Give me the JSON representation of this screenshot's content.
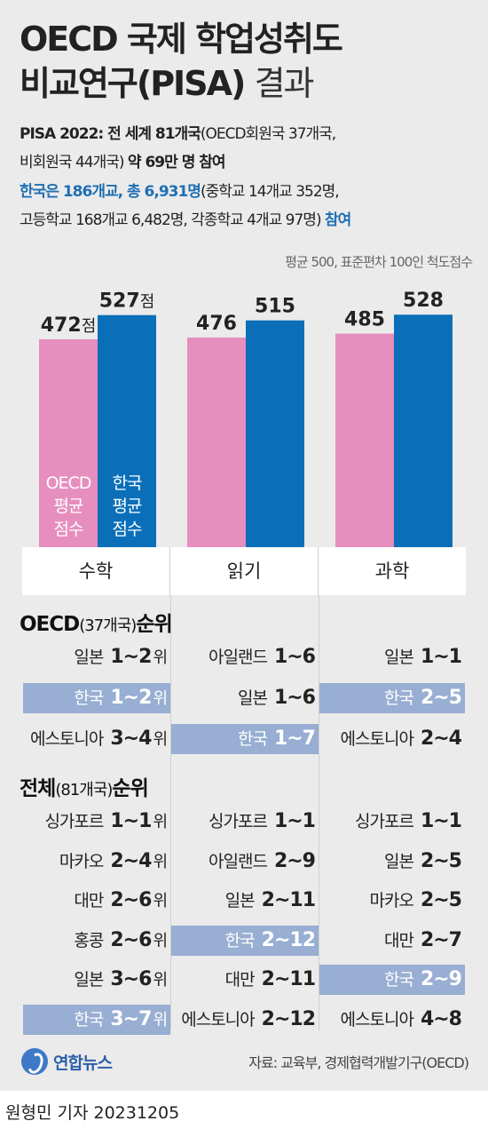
{
  "title": {
    "line1": "OECD 국제 학업성취도",
    "line2_bold": "비교연구(PISA)",
    "line2_light": "결과"
  },
  "info": {
    "l1_bold": "PISA 2022: 전 세계 81개국",
    "l1_normal": "(OECD회원국 37개국,",
    "l2_normal": "비회원국 44개국)",
    "l2_bold": "약 69만 명 참여",
    "l3_blue": "한국은 186개교, 총 6,931명",
    "l3_normal": "(중학교 14개교 352명,",
    "l4_normal": "고등학교 168개교 6,482명, 각종학교 4개교 97명)",
    "l4_blue": "참여"
  },
  "note": "평균 500, 표준편차 100인 척도점수",
  "colors": {
    "oecd": "#e68ebd",
    "korea": "#0a6fb8",
    "highlight": "#98aed2",
    "bg": "#ebebeb"
  },
  "chart_data": {
    "type": "bar",
    "categories": [
      "수학",
      "읽기",
      "과학"
    ],
    "series": [
      {
        "name": "OECD 평균 점수",
        "values": [
          472,
          476,
          485
        ]
      },
      {
        "name": "한국 평균 점수",
        "values": [
          527,
          515,
          528
        ]
      }
    ],
    "value_labels": {
      "oecd": [
        "472점",
        "476",
        "485"
      ],
      "korea": [
        "527점",
        "515",
        "528"
      ]
    },
    "series_labels": {
      "oecd": [
        "OECD",
        "평균",
        "점수"
      ],
      "korea": [
        "한국",
        "평균",
        "점수"
      ]
    },
    "ylim": [
      0,
      560
    ]
  },
  "oecd_rank": {
    "title": "OECD",
    "title_sub": "(37개국)",
    "title_tail": "순위",
    "rows": [
      [
        {
          "name": "일본",
          "rank": "1~2",
          "wi": "위",
          "hl": false
        },
        {
          "name": "아일랜드",
          "rank": "1~6",
          "wi": "",
          "hl": false
        },
        {
          "name": "일본",
          "rank": "1~1",
          "wi": "",
          "hl": false
        }
      ],
      [
        {
          "name": "한국",
          "rank": "1~2",
          "wi": "위",
          "hl": true
        },
        {
          "name": "일본",
          "rank": "1~6",
          "wi": "",
          "hl": false
        },
        {
          "name": "한국",
          "rank": "2~5",
          "wi": "",
          "hl": true
        }
      ],
      [
        {
          "name": "에스토니아",
          "rank": "3~4",
          "wi": "위",
          "hl": false
        },
        {
          "name": "한국",
          "rank": "1~7",
          "wi": "",
          "hl": true
        },
        {
          "name": "에스토니아",
          "rank": "2~4",
          "wi": "",
          "hl": false
        }
      ]
    ]
  },
  "total_rank": {
    "title": "전체",
    "title_sub": "(81개국)",
    "title_tail": "순위",
    "rows": [
      [
        {
          "name": "싱가포르",
          "rank": "1~1",
          "wi": "위",
          "hl": false
        },
        {
          "name": "싱가포르",
          "rank": "1~1",
          "wi": "",
          "hl": false
        },
        {
          "name": "싱가포르",
          "rank": "1~1",
          "wi": "",
          "hl": false
        }
      ],
      [
        {
          "name": "마카오",
          "rank": "2~4",
          "wi": "위",
          "hl": false
        },
        {
          "name": "아일랜드",
          "rank": "2~9",
          "wi": "",
          "hl": false
        },
        {
          "name": "일본",
          "rank": "2~5",
          "wi": "",
          "hl": false
        }
      ],
      [
        {
          "name": "대만",
          "rank": "2~6",
          "wi": "위",
          "hl": false
        },
        {
          "name": "일본",
          "rank": "2~11",
          "wi": "",
          "hl": false
        },
        {
          "name": "마카오",
          "rank": "2~5",
          "wi": "",
          "hl": false
        }
      ],
      [
        {
          "name": "홍콩",
          "rank": "2~6",
          "wi": "위",
          "hl": false
        },
        {
          "name": "한국",
          "rank": "2~12",
          "wi": "",
          "hl": true
        },
        {
          "name": "대만",
          "rank": "2~7",
          "wi": "",
          "hl": false
        }
      ],
      [
        {
          "name": "일본",
          "rank": "3~6",
          "wi": "위",
          "hl": false
        },
        {
          "name": "대만",
          "rank": "2~11",
          "wi": "",
          "hl": false
        },
        {
          "name": "한국",
          "rank": "2~9",
          "wi": "",
          "hl": true
        }
      ],
      [
        {
          "name": "한국",
          "rank": "3~7",
          "wi": "위",
          "hl": true
        },
        {
          "name": "에스토니아",
          "rank": "2~12",
          "wi": "",
          "hl": false
        },
        {
          "name": "에스토니아",
          "rank": "4~8",
          "wi": "",
          "hl": false
        }
      ]
    ]
  },
  "footer": {
    "logo": "연합뉴스",
    "source": "자료: 교육부, 경제협력개발기구(OECD)",
    "byline": "원형민 기자  20231205"
  }
}
